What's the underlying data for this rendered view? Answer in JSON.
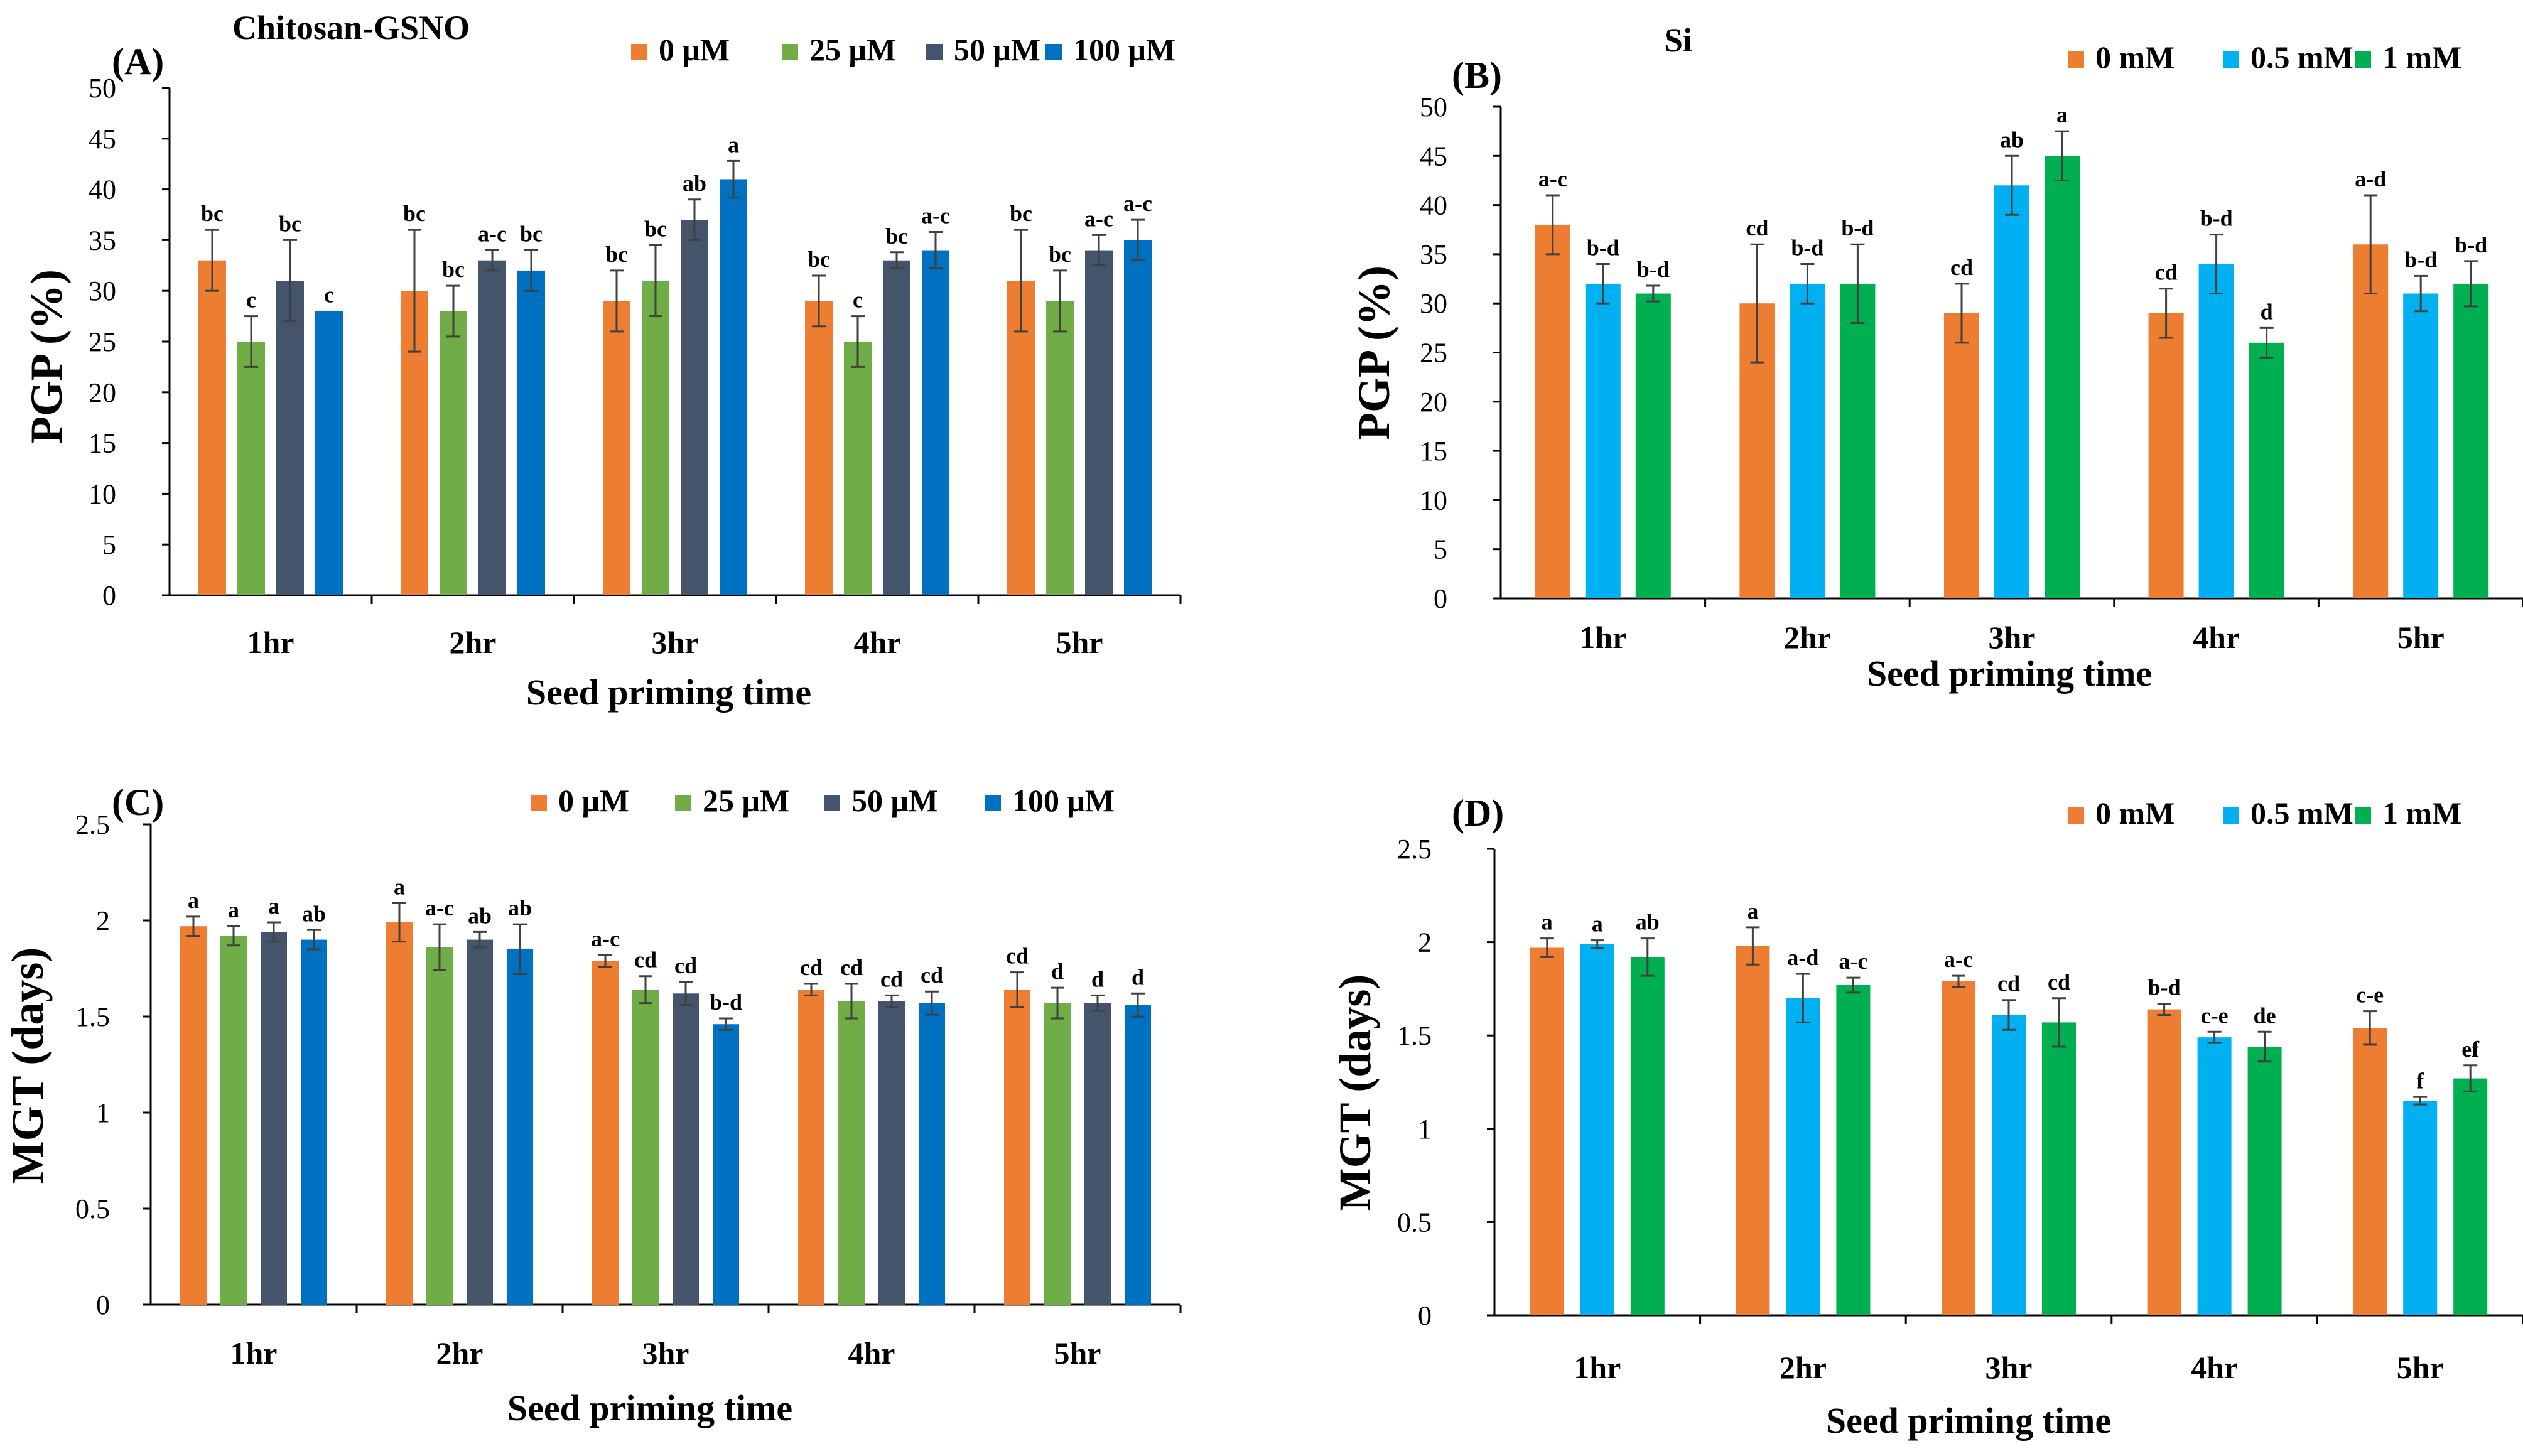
{
  "chart_data": [
    {
      "id": "A",
      "type": "bar",
      "panel_label": "(A)",
      "title": "Chitosan-GSNO",
      "xlabel": "Seed priming time",
      "ylabel": "PGP (%)",
      "ylim": [
        0,
        50
      ],
      "yticks": [
        "0",
        "5",
        "10",
        "15",
        "20",
        "25",
        "30",
        "35",
        "40",
        "45",
        "50"
      ],
      "categories": [
        "1hr",
        "2hr",
        "3hr",
        "4hr",
        "5hr"
      ],
      "series": [
        {
          "name": "0 μM",
          "color": "#ED7D31",
          "values": [
            33,
            30,
            29,
            29,
            31
          ],
          "errors": [
            3,
            6,
            3,
            2.5,
            5
          ],
          "letters": [
            "bc",
            "bc",
            "bc",
            "bc",
            "bc"
          ]
        },
        {
          "name": "25 μM",
          "color": "#70AD47",
          "values": [
            25,
            28,
            31,
            25,
            29
          ],
          "errors": [
            2.5,
            2.5,
            3.5,
            2.5,
            3
          ],
          "letters": [
            "c",
            "bc",
            "bc",
            "c",
            "bc"
          ]
        },
        {
          "name": "50 μM",
          "color": "#44546A",
          "values": [
            31,
            33,
            37,
            33,
            34
          ],
          "errors": [
            4,
            1,
            2,
            0.8,
            1.5
          ],
          "letters": [
            "bc",
            "a-c",
            "ab",
            "bc",
            "a-c"
          ]
        },
        {
          "name": "100 μM",
          "color": "#0070C0",
          "values": [
            28,
            32,
            41,
            34,
            35
          ],
          "errors": [
            0,
            2,
            1.8,
            1.8,
            2
          ],
          "letters": [
            "c",
            "bc",
            "a",
            "a-c",
            "a-c"
          ]
        }
      ]
    },
    {
      "id": "B",
      "type": "bar",
      "panel_label": "(B)",
      "title": "Si",
      "xlabel": "Seed priming time",
      "ylabel": "PGP (%)",
      "ylim": [
        0,
        50
      ],
      "yticks": [
        "0",
        "5",
        "10",
        "15",
        "20",
        "25",
        "30",
        "35",
        "40",
        "45",
        "50"
      ],
      "categories": [
        "1hr",
        "2hr",
        "3hr",
        "4hr",
        "5hr"
      ],
      "series": [
        {
          "name": "0 mM",
          "color": "#ED7D31",
          "values": [
            38,
            30,
            29,
            29,
            36
          ],
          "errors": [
            3,
            6,
            3,
            2.5,
            5
          ],
          "letters": [
            "a-c",
            "cd",
            "cd",
            "cd",
            "a-d"
          ]
        },
        {
          "name": "0.5 mM",
          "color": "#00B0F0",
          "values": [
            32,
            32,
            42,
            34,
            31
          ],
          "errors": [
            2,
            2,
            3,
            3,
            1.8
          ],
          "letters": [
            "b-d",
            "b-d",
            "ab",
            "b-d",
            "b-d"
          ]
        },
        {
          "name": "1 mM",
          "color": "#00B050",
          "values": [
            31,
            32,
            45,
            26,
            32
          ],
          "errors": [
            0.8,
            4,
            2.5,
            1.5,
            2.3
          ],
          "letters": [
            "b-d",
            "b-d",
            "a",
            "d",
            "b-d"
          ]
        }
      ]
    },
    {
      "id": "C",
      "type": "bar",
      "panel_label": "(C)",
      "title": "",
      "xlabel": "Seed priming time",
      "ylabel": "MGT (days)",
      "ylim": [
        0,
        2.5
      ],
      "yticks": [
        "0",
        "0.5",
        "1",
        "1.5",
        "2",
        "2.5"
      ],
      "categories": [
        "1hr",
        "2hr",
        "3hr",
        "4hr",
        "5hr"
      ],
      "series": [
        {
          "name": "0 μM",
          "color": "#ED7D31",
          "values": [
            1.97,
            1.99,
            1.79,
            1.64,
            1.64
          ],
          "errors": [
            0.05,
            0.1,
            0.03,
            0.03,
            0.09
          ],
          "letters": [
            "a",
            "a",
            "a-c",
            "cd",
            "cd"
          ]
        },
        {
          "name": "25 μM",
          "color": "#70AD47",
          "values": [
            1.92,
            1.86,
            1.64,
            1.58,
            1.57
          ],
          "errors": [
            0.05,
            0.12,
            0.07,
            0.09,
            0.08
          ],
          "letters": [
            "a",
            "a-c",
            "cd",
            "cd",
            "d"
          ]
        },
        {
          "name": "50 μM",
          "color": "#44546A",
          "values": [
            1.94,
            1.9,
            1.62,
            1.58,
            1.57
          ],
          "errors": [
            0.05,
            0.04,
            0.06,
            0.03,
            0.04
          ],
          "letters": [
            "a",
            "ab",
            "cd",
            "cd",
            "d"
          ]
        },
        {
          "name": "100 μM",
          "color": "#0070C0",
          "values": [
            1.9,
            1.85,
            1.46,
            1.57,
            1.56
          ],
          "errors": [
            0.05,
            0.13,
            0.03,
            0.06,
            0.06
          ],
          "letters": [
            "ab",
            "ab",
            "b-d",
            "cd",
            "d"
          ]
        }
      ]
    },
    {
      "id": "D",
      "type": "bar",
      "panel_label": "(D)",
      "title": "",
      "xlabel": "Seed priming time",
      "ylabel": "MGT (days)",
      "ylim": [
        0,
        2.5
      ],
      "yticks": [
        "0",
        "0.5",
        "1",
        "1.5",
        "2",
        "2.5"
      ],
      "categories": [
        "1hr",
        "2hr",
        "3hr",
        "4hr",
        "5hr"
      ],
      "series": [
        {
          "name": "0 mM",
          "color": "#ED7D31",
          "values": [
            1.97,
            1.98,
            1.79,
            1.64,
            1.54
          ],
          "errors": [
            0.05,
            0.1,
            0.03,
            0.03,
            0.09
          ],
          "letters": [
            "a",
            "a",
            "a-c",
            "b-d",
            "c-e"
          ]
        },
        {
          "name": "0.5 mM",
          "color": "#00B0F0",
          "values": [
            1.99,
            1.7,
            1.61,
            1.49,
            1.15
          ],
          "errors": [
            0.02,
            0.13,
            0.08,
            0.03,
            0.02
          ],
          "letters": [
            "a",
            "a-d",
            "cd",
            "c-e",
            "f"
          ]
        },
        {
          "name": "1 mM",
          "color": "#00B050",
          "values": [
            1.92,
            1.77,
            1.57,
            1.44,
            1.27
          ],
          "errors": [
            0.1,
            0.04,
            0.13,
            0.08,
            0.07
          ],
          "letters": [
            "ab",
            "a-c",
            "cd",
            "de",
            "ef"
          ]
        }
      ]
    }
  ]
}
